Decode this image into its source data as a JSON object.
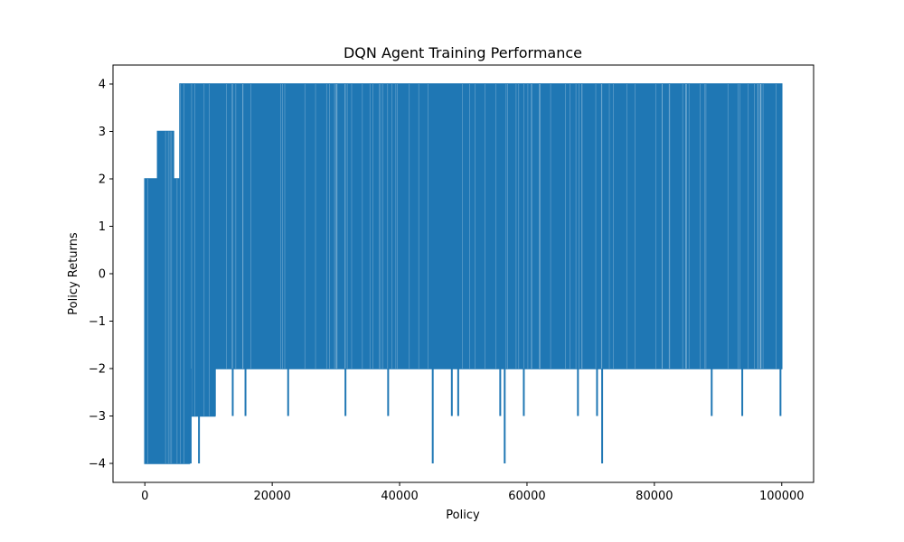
{
  "chart_data": {
    "type": "line",
    "title": "DQN Agent Training Performance",
    "xlabel": "Policy",
    "ylabel": "Policy Returns",
    "xlim": [
      -5000,
      105000
    ],
    "ylim": [
      -4.4,
      4.4
    ],
    "x_ticks": [
      0,
      20000,
      40000,
      60000,
      80000,
      100000
    ],
    "x_tick_labels": [
      "0",
      "20000",
      "40000",
      "60000",
      "80000",
      "100000"
    ],
    "y_ticks": [
      -4,
      -3,
      -2,
      -1,
      0,
      1,
      2,
      3,
      4
    ],
    "y_tick_labels": [
      "−4",
      "−3",
      "−2",
      "−1",
      "0",
      "1",
      "2",
      "3",
      "4"
    ],
    "grid": false,
    "legend": "none",
    "series": [
      {
        "color": "#1f77b4",
        "x": [
          0,
          2000,
          4500,
          5500,
          7000,
          9000,
          11000,
          14000,
          20000,
          25000,
          30000,
          35000,
          40000,
          45000,
          50000,
          55000,
          60000,
          65000,
          70000,
          75000,
          80000,
          85000,
          90000,
          95000,
          100000
        ],
        "y_min": [
          -4,
          -4,
          -4,
          -4,
          -3,
          -3,
          -2,
          -2,
          -2,
          -2,
          -2,
          -2,
          -2,
          -2,
          -2,
          -2,
          -2,
          -2,
          -2,
          -2,
          -2,
          -2,
          -2,
          -2,
          -2
        ],
        "y_max": [
          2,
          3,
          2,
          4,
          4,
          4,
          4,
          4,
          4,
          4,
          4,
          4,
          4,
          4,
          4,
          4,
          4,
          4,
          4,
          4,
          4,
          4,
          4,
          4,
          4
        ],
        "spikes": [
          {
            "x": 11000,
            "y": -3
          },
          {
            "x": 13800,
            "y": -3
          },
          {
            "x": 15800,
            "y": -3
          },
          {
            "x": 22500,
            "y": -3
          },
          {
            "x": 31500,
            "y": -3
          },
          {
            "x": 38200,
            "y": -3
          },
          {
            "x": 45200,
            "y": -4
          },
          {
            "x": 48200,
            "y": -3
          },
          {
            "x": 49200,
            "y": -3
          },
          {
            "x": 55800,
            "y": -3
          },
          {
            "x": 56500,
            "y": -4
          },
          {
            "x": 59500,
            "y": -3
          },
          {
            "x": 68000,
            "y": -3
          },
          {
            "x": 71000,
            "y": -3
          },
          {
            "x": 71800,
            "y": -4
          },
          {
            "x": 89000,
            "y": -3
          },
          {
            "x": 93800,
            "y": -3
          },
          {
            "x": 99800,
            "y": -3
          },
          {
            "x": 8500,
            "y": -4
          },
          {
            "x": 7200,
            "y": -4
          }
        ]
      }
    ]
  }
}
